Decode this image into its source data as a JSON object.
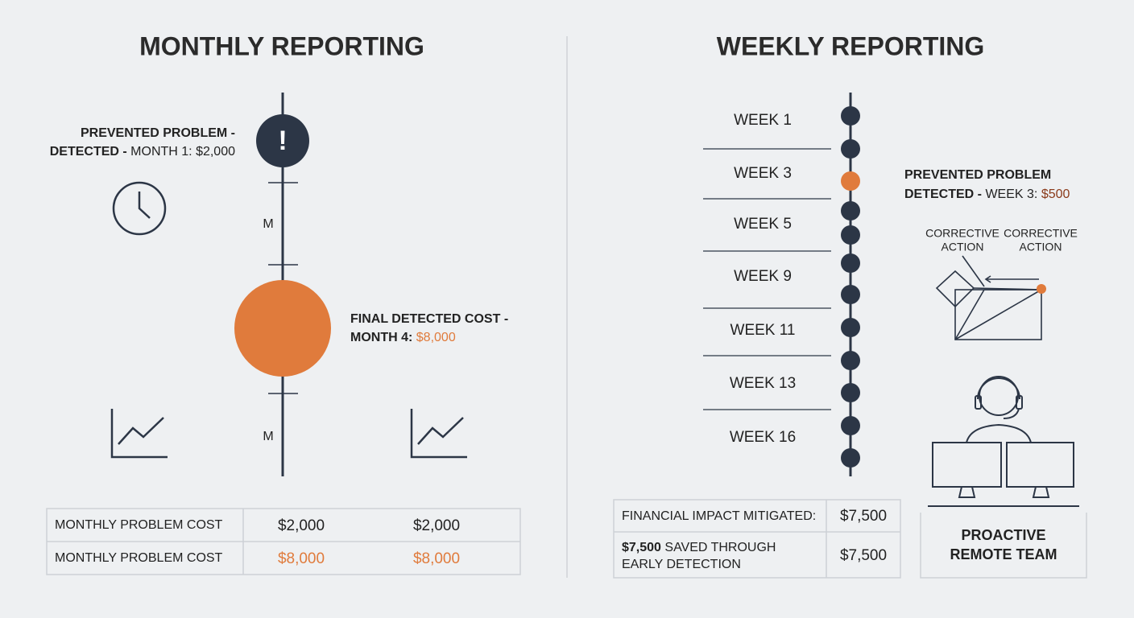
{
  "monthly": {
    "title": "MONTHLY REPORTING",
    "alert_icon": "!",
    "event_1": {
      "line_1": "PREVENTED PROBLEM -",
      "line_2_bold": "DETECTED -",
      "line_2_rest": "MONTH 1: $2,000"
    },
    "markers": [
      "M",
      "M"
    ],
    "event_2": {
      "line_1": "FINAL DETECTED COST -",
      "line_2_bold": "MONTH 4:",
      "line_2_value": "$8,000"
    },
    "table": {
      "rows": [
        [
          "MONTHLY PROBLEM COST",
          "$2,000",
          "$2,000"
        ],
        [
          "MONTHLY PROBLEM COST",
          "$8,000",
          "$8,000"
        ]
      ]
    }
  },
  "weekly": {
    "title": "WEEKLY REPORTING",
    "weeks": [
      "WEEK 1",
      "WEEK 3",
      "WEEK 5",
      "WEEK 9",
      "WEEK 11",
      "WEEK 13",
      "WEEK 16"
    ],
    "event": {
      "line_1": "PREVENTED PROBLEM",
      "line_2_bold": "DETECTED -",
      "line_2_rest": "WEEK 3:",
      "line_2_value": "$500"
    },
    "corrective_actions": [
      [
        "CORRECTIVE",
        "ACTION"
      ],
      [
        "CORRECTIVE",
        "ACTION"
      ]
    ],
    "team": [
      "PROACTIVE",
      "REMOTE TEAM"
    ],
    "table": {
      "rows": [
        [
          "FINANCIAL IMPACT MITIGATED:",
          "$7,500"
        ],
        [
          [
            "$7,500",
            "SAVED THROUGH",
            "EARLY DETECTION"
          ],
          "$7,500"
        ]
      ]
    }
  }
}
